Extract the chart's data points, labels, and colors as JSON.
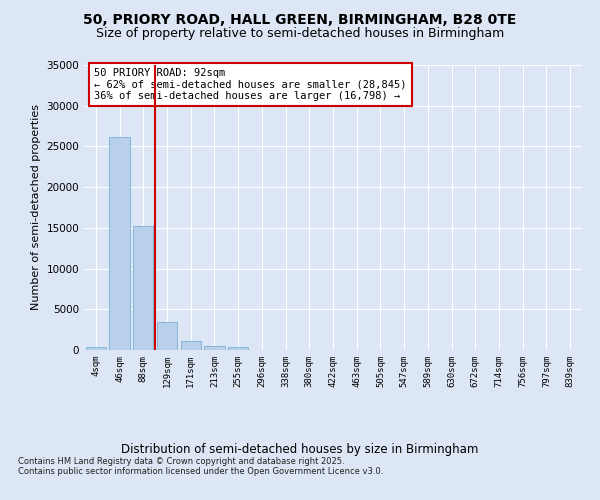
{
  "title_line1": "50, PRIORY ROAD, HALL GREEN, BIRMINGHAM, B28 0TE",
  "title_line2": "Size of property relative to semi-detached houses in Birmingham",
  "xlabel": "Distribution of semi-detached houses by size in Birmingham",
  "ylabel": "Number of semi-detached properties",
  "categories": [
    "4sqm",
    "46sqm",
    "88sqm",
    "129sqm",
    "171sqm",
    "213sqm",
    "255sqm",
    "296sqm",
    "338sqm",
    "380sqm",
    "422sqm",
    "463sqm",
    "505sqm",
    "547sqm",
    "589sqm",
    "630sqm",
    "672sqm",
    "714sqm",
    "756sqm",
    "797sqm",
    "839sqm"
  ],
  "bar_heights": [
    400,
    26100,
    15200,
    3400,
    1100,
    500,
    350,
    0,
    0,
    0,
    0,
    0,
    0,
    0,
    0,
    0,
    0,
    0,
    0,
    0,
    0
  ],
  "bar_color": "#b8d0ea",
  "bar_edge_color": "#7aafd4",
  "vline_color": "#cc0000",
  "annotation_text": "50 PRIORY ROAD: 92sqm\n← 62% of semi-detached houses are smaller (28,845)\n36% of semi-detached houses are larger (16,798) →",
  "annotation_box_facecolor": "#ffffff",
  "annotation_box_edgecolor": "#cc0000",
  "ylim": [
    0,
    35000
  ],
  "yticks": [
    0,
    5000,
    10000,
    15000,
    20000,
    25000,
    30000,
    35000
  ],
  "background_color": "#dce6f5",
  "plot_bg_color": "#dce6f5",
  "title_fontsize": 10,
  "subtitle_fontsize": 9,
  "footnote_line1": "Contains HM Land Registry data © Crown copyright and database right 2025.",
  "footnote_line2": "Contains public sector information licensed under the Open Government Licence v3.0."
}
